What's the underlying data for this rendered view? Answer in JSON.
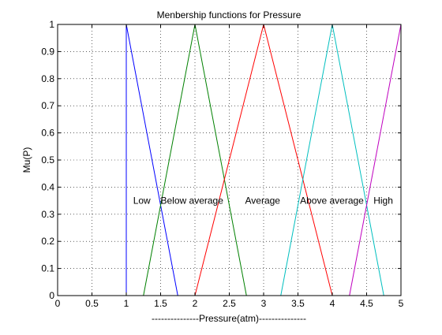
{
  "chart_data": {
    "type": "line",
    "title": "Menbership functions for Pressure",
    "xlabel": "---------------Pressure(atm)---------------",
    "ylabel": "Mu(P)",
    "xlim": [
      0,
      5
    ],
    "ylim": [
      0,
      1
    ],
    "xticks": [
      0,
      0.5,
      1,
      1.5,
      2,
      2.5,
      3,
      3.5,
      4,
      4.5,
      5
    ],
    "xtick_labels": [
      "0",
      "0.5",
      "1",
      "1.5",
      "2",
      "2.5",
      "3",
      "3.5",
      "4",
      "4.5",
      "5"
    ],
    "yticks": [
      0,
      0.1,
      0.2,
      0.3,
      0.4,
      0.5,
      0.6,
      0.7,
      0.8,
      0.9,
      1
    ],
    "ytick_labels": [
      "0",
      "0.1",
      "0.2",
      "0.3",
      "0.4",
      "0.5",
      "0.6",
      "0.7",
      "0.8",
      "0.9",
      "1"
    ],
    "grid": true,
    "series": [
      {
        "name": "Low",
        "color": "#0000ff",
        "x": [
          1,
          1,
          1.75
        ],
        "y": [
          0,
          1,
          0
        ]
      },
      {
        "name": "Below average",
        "color": "#008000",
        "x": [
          1.25,
          2,
          2.75
        ],
        "y": [
          0,
          1,
          0
        ]
      },
      {
        "name": "Average",
        "color": "#ff0000",
        "x": [
          2,
          3,
          4
        ],
        "y": [
          0,
          1,
          0
        ]
      },
      {
        "name": "Above average",
        "color": "#00bfbf",
        "x": [
          3.25,
          4,
          4.75
        ],
        "y": [
          0,
          1,
          0
        ]
      },
      {
        "name": "High",
        "color": "#bf00bf",
        "x": [
          4.25,
          5
        ],
        "y": [
          0,
          1
        ]
      }
    ],
    "annotations": [
      {
        "text": "Low",
        "x": 1.1,
        "y": 0.35
      },
      {
        "text": "Below average",
        "x": 1.5,
        "y": 0.35
      },
      {
        "text": "Average",
        "x": 2.73,
        "y": 0.35
      },
      {
        "text": "Above average",
        "x": 3.53,
        "y": 0.35
      },
      {
        "text": "High",
        "x": 4.6,
        "y": 0.35
      }
    ]
  }
}
